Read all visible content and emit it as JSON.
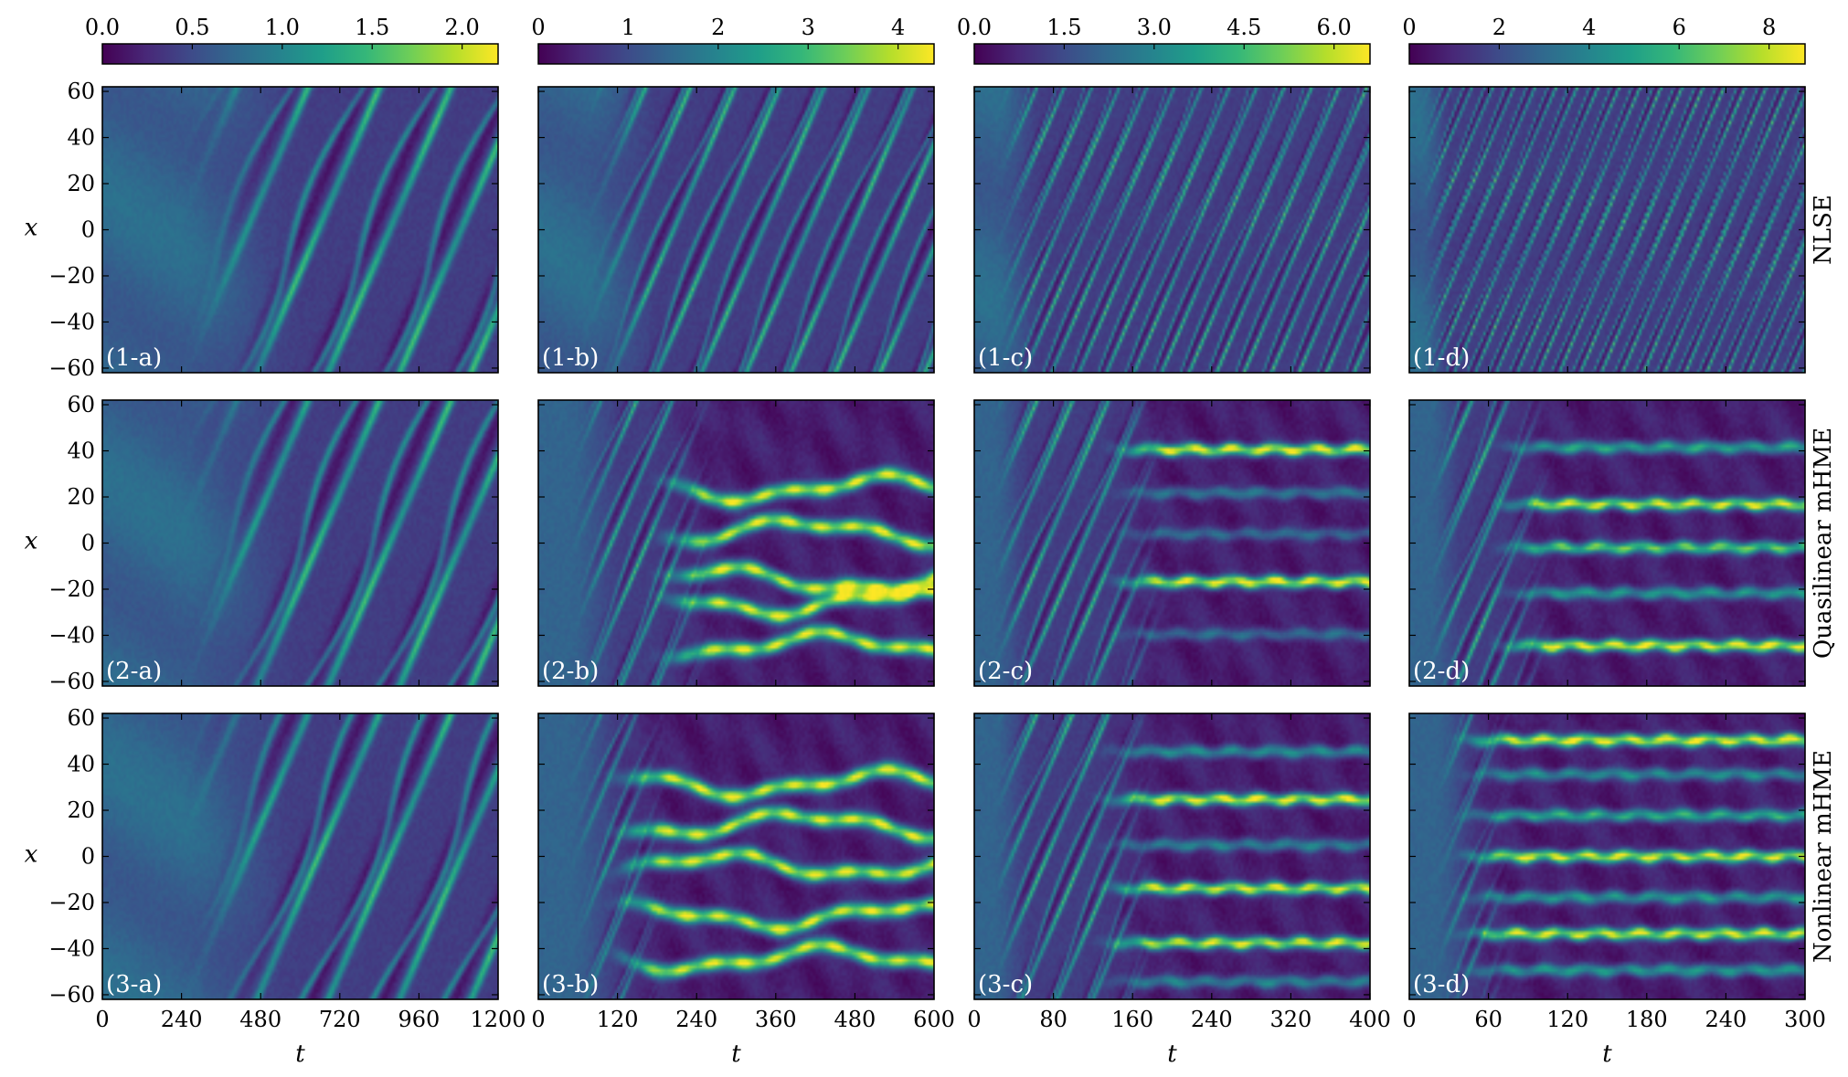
{
  "chart_data": {
    "type": "heatmap",
    "colormap": "viridis",
    "colormap_stops": [
      "#440154",
      "#482878",
      "#3e4a89",
      "#31688e",
      "#26828e",
      "#1f9e89",
      "#35b779",
      "#6ece58",
      "#b5de2b",
      "#fde725"
    ],
    "row_labels": [
      "NLSE",
      "Quasilinear mHME",
      "Nonlinear mHME"
    ],
    "xlabel": "t",
    "ylabel": "x",
    "ylim": [
      -62,
      62
    ],
    "yticks": [
      60,
      40,
      20,
      0,
      -20,
      -40,
      -60
    ],
    "ytick_labels": [
      "60",
      "40",
      "20",
      "0",
      "−20",
      "−40",
      "−60"
    ],
    "columns": [
      {
        "xlim": [
          0,
          1200
        ],
        "xticks": [
          0,
          240,
          480,
          720,
          960,
          1200
        ],
        "xtick_labels": [
          "0",
          "240",
          "480",
          "720",
          "960",
          "1200"
        ],
        "colorbar": {
          "range": [
            0,
            2.2
          ],
          "ticks": [
            0,
            0.5,
            1.0,
            1.5,
            2.0
          ],
          "tick_labels": [
            "0.0",
            "0.5",
            "1.0",
            "1.5",
            "2.0"
          ]
        }
      },
      {
        "xlim": [
          0,
          600
        ],
        "xticks": [
          0,
          120,
          240,
          360,
          480,
          600
        ],
        "xtick_labels": [
          "0",
          "120",
          "240",
          "360",
          "480",
          "600"
        ],
        "colorbar": {
          "range": [
            0,
            4.4
          ],
          "ticks": [
            0,
            1,
            2,
            3,
            4
          ],
          "tick_labels": [
            "0",
            "1",
            "2",
            "3",
            "4"
          ]
        }
      },
      {
        "xlim": [
          0,
          400
        ],
        "xticks": [
          0,
          80,
          160,
          240,
          320,
          400
        ],
        "xtick_labels": [
          "0",
          "80",
          "160",
          "240",
          "320",
          "400"
        ],
        "colorbar": {
          "range": [
            0,
            6.6
          ],
          "ticks": [
            0,
            1.5,
            3.0,
            4.5,
            6.0
          ],
          "tick_labels": [
            "0.0",
            "1.5",
            "3.0",
            "4.5",
            "6.0"
          ]
        }
      },
      {
        "xlim": [
          0,
          300
        ],
        "xticks": [
          0,
          60,
          120,
          180,
          240,
          300
        ],
        "xtick_labels": [
          "0",
          "60",
          "120",
          "180",
          "240",
          "300"
        ],
        "colorbar": {
          "range": [
            0,
            8.8
          ],
          "ticks": [
            0,
            2,
            4,
            6,
            8
          ],
          "tick_labels": [
            "0",
            "2",
            "4",
            "6",
            "8"
          ]
        }
      }
    ],
    "panels": [
      {
        "label": "(1-a)",
        "row": 0,
        "col": 0,
        "pattern": "diagonal",
        "onset": 350,
        "density": 1.0,
        "peak": 2.0
      },
      {
        "label": "(1-b)",
        "row": 0,
        "col": 1,
        "pattern": "diagonal",
        "onset": 100,
        "density": 1.6,
        "peak": 3.8
      },
      {
        "label": "(1-c)",
        "row": 0,
        "col": 2,
        "pattern": "diagonal",
        "onset": 30,
        "density": 2.6,
        "peak": 6.0
      },
      {
        "label": "(1-d)",
        "row": 0,
        "col": 3,
        "pattern": "diagonal",
        "onset": 10,
        "density": 3.4,
        "peak": 8.0
      },
      {
        "label": "(2-a)",
        "row": 1,
        "col": 0,
        "pattern": "diagonal",
        "onset": 350,
        "density": 1.0,
        "peak": 2.0
      },
      {
        "label": "(2-b)",
        "row": 1,
        "col": 1,
        "pattern": "wander",
        "onset": 100,
        "transition": 230,
        "filaments": [
          {
            "x": 24
          },
          {
            "x": 5
          },
          {
            "x": -16
          },
          {
            "x": -26
          },
          {
            "x": -45
          }
        ],
        "peak": 3.6
      },
      {
        "label": "(2-c)",
        "row": 1,
        "col": 2,
        "pattern": "filaments",
        "onset": 40,
        "transition": 170,
        "filaments": [
          {
            "x": 41,
            "a": 1.0
          },
          {
            "x": 22,
            "a": 0.35
          },
          {
            "x": 4,
            "a": 0.3
          },
          {
            "x": -17,
            "a": 1.0
          },
          {
            "x": -40,
            "a": 0.3
          }
        ],
        "peak": 6.2
      },
      {
        "label": "(2-d)",
        "row": 1,
        "col": 3,
        "pattern": "filaments",
        "onset": 30,
        "transition": 90,
        "filaments": [
          {
            "x": 42,
            "a": 0.55
          },
          {
            "x": 17,
            "a": 0.95
          },
          {
            "x": -2,
            "a": 0.75
          },
          {
            "x": -22,
            "a": 0.5
          },
          {
            "x": -45,
            "a": 1.0
          }
        ],
        "peak": 8.2
      },
      {
        "label": "(3-a)",
        "row": 2,
        "col": 0,
        "pattern": "diagonal",
        "onset": 350,
        "density": 1.0,
        "peak": 2.0
      },
      {
        "label": "(3-b)",
        "row": 2,
        "col": 1,
        "pattern": "wander",
        "onset": 100,
        "transition": 160,
        "filaments": [
          {
            "x": 32
          },
          {
            "x": 14
          },
          {
            "x": -4
          },
          {
            "x": -26
          },
          {
            "x": -45
          }
        ],
        "peak": 4.0
      },
      {
        "label": "(3-c)",
        "row": 2,
        "col": 2,
        "pattern": "filaments",
        "onset": 40,
        "transition": 160,
        "filaments": [
          {
            "x": 46,
            "a": 0.45
          },
          {
            "x": 25,
            "a": 1.0
          },
          {
            "x": 5,
            "a": 0.4
          },
          {
            "x": -14,
            "a": 0.95
          },
          {
            "x": -38,
            "a": 0.95
          },
          {
            "x": -55,
            "a": 0.4
          }
        ],
        "peak": 6.2
      },
      {
        "label": "(3-d)",
        "row": 2,
        "col": 3,
        "pattern": "filaments",
        "onset": 40,
        "transition": 60,
        "filaments": [
          {
            "x": 51,
            "a": 1.0
          },
          {
            "x": 36,
            "a": 0.45
          },
          {
            "x": 18,
            "a": 0.6
          },
          {
            "x": 0,
            "a": 0.95
          },
          {
            "x": -18,
            "a": 0.5
          },
          {
            "x": -34,
            "a": 0.95
          },
          {
            "x": -50,
            "a": 0.5
          }
        ],
        "peak": 8.4
      }
    ]
  }
}
